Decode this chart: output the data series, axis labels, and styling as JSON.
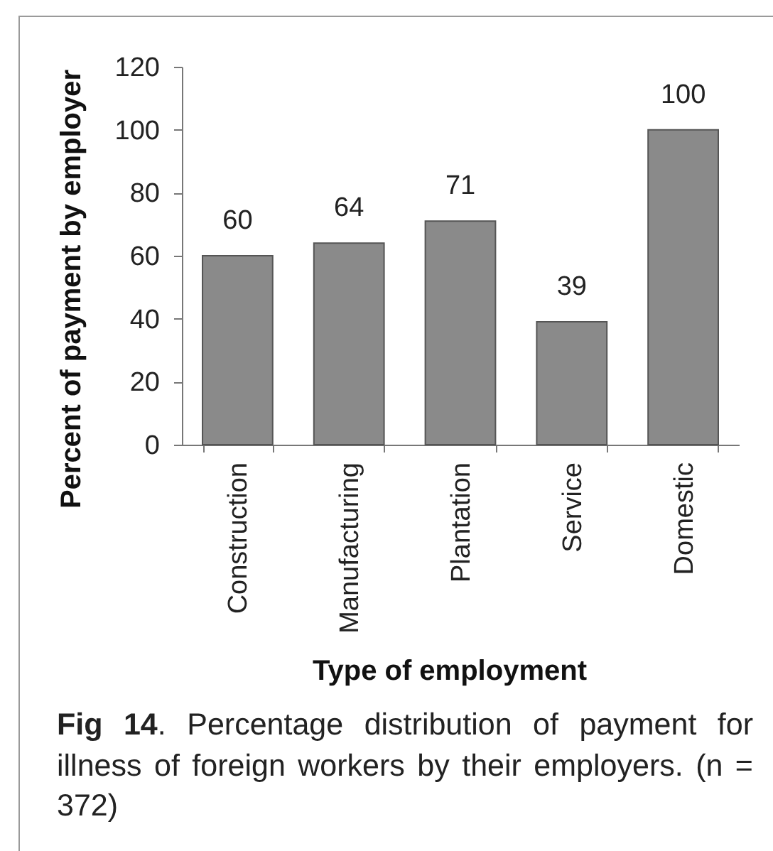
{
  "chart_data": {
    "type": "bar",
    "xlabel": "Type of employment",
    "ylabel": "Percent of payment by employer",
    "categories": [
      "Construction",
      "Manufacturing",
      "Plantation",
      "Service",
      "Domestic"
    ],
    "values": [
      60,
      64,
      71,
      39,
      100
    ],
    "color": "#8a8a8a",
    "ylim": [
      0,
      120
    ],
    "yticks": [
      0,
      20,
      40,
      60,
      80,
      100,
      120
    ],
    "data_labels": true,
    "annotations": [
      "Fig 14. Percentage distribution of payment for illness of foreign workers by their employers. (n = 372)"
    ]
  }
}
